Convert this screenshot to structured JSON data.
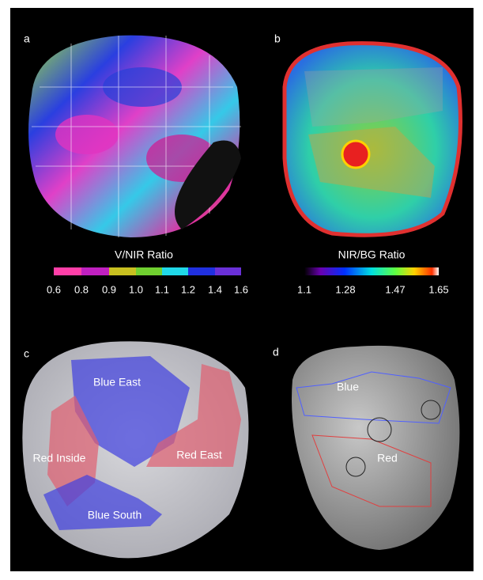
{
  "panels": [
    {
      "label": "a",
      "colorbar": {
        "title": "V/NIR Ratio",
        "ticks": [
          "0.6",
          "0.8",
          "0.9",
          "1.0",
          "1.1",
          "1.2",
          "1.4",
          "1.6"
        ]
      }
    },
    {
      "label": "b",
      "colorbar": {
        "title": "NIR/BG Ratio",
        "ticks": [
          "1.1",
          "1.28",
          "1.47",
          "1.65"
        ]
      }
    },
    {
      "label": "c",
      "regions": [
        "Blue East",
        "Red Inside",
        "Red East",
        "Blue South"
      ]
    },
    {
      "label": "d",
      "regions": [
        "Blue",
        "Red"
      ]
    }
  ]
}
